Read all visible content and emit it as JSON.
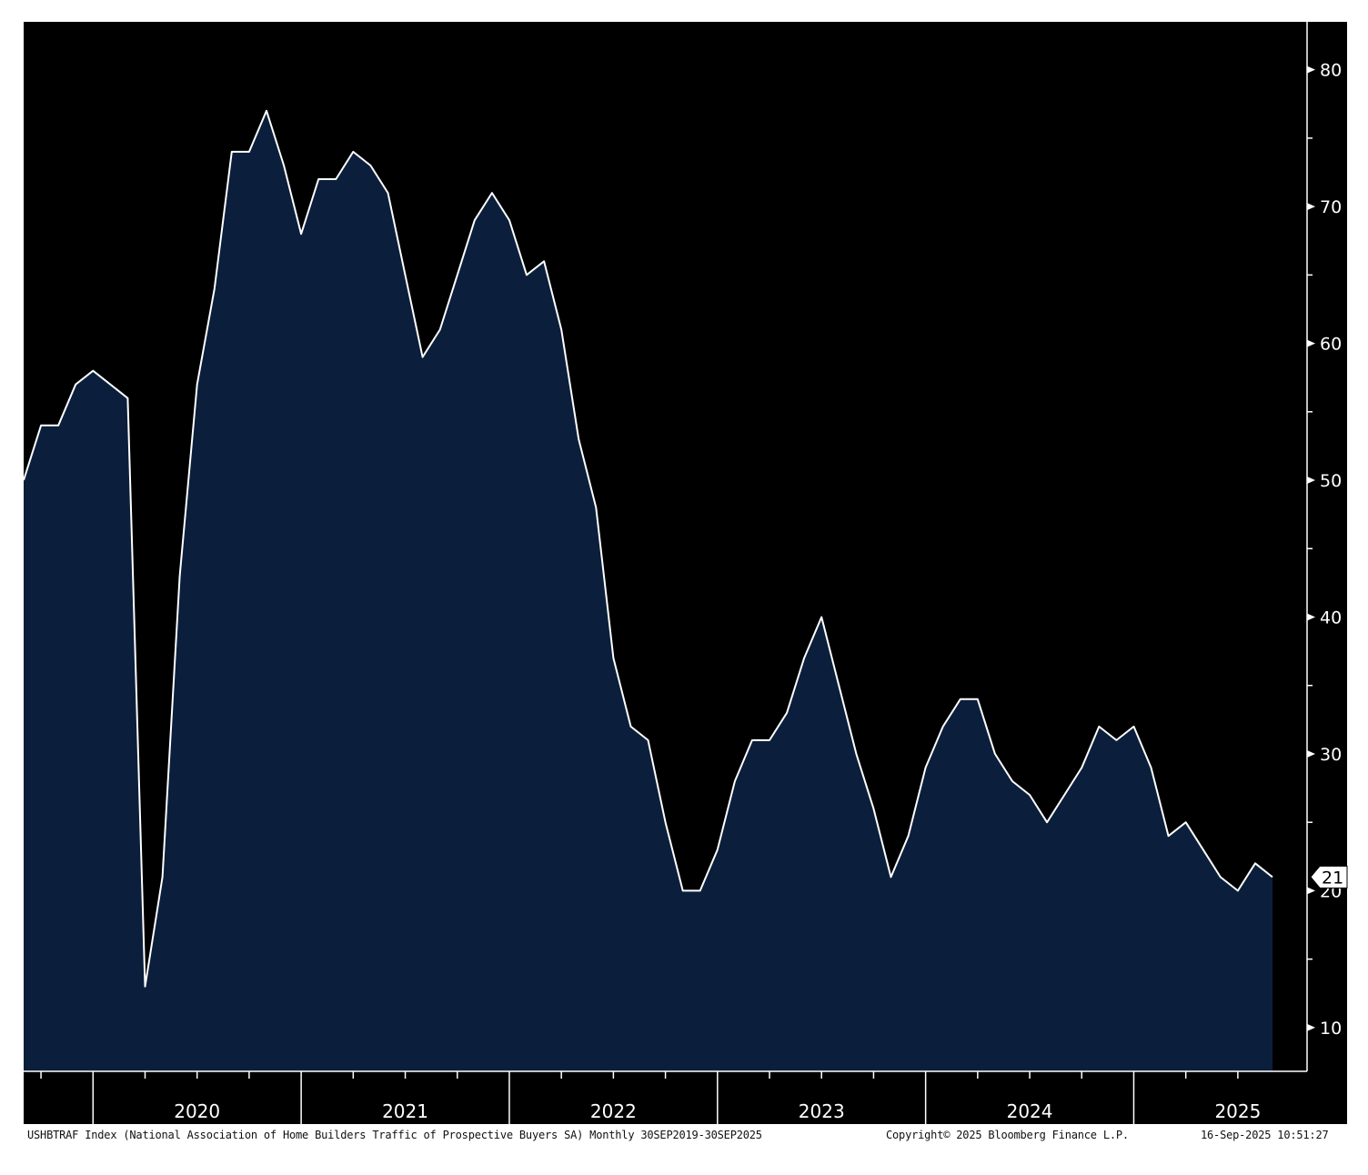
{
  "chart_data": {
    "type": "area",
    "ticker": "USHBTRAF Index",
    "description_text": "(National Association of Home Builders Traffic of Prospective Buyers SA)",
    "frequency": "Monthly",
    "range_text": "30SEP2019-30SEP2025",
    "x_start": "2019-09",
    "x_end": "2025-09",
    "year_labels": [
      "2020",
      "2021",
      "2022",
      "2023",
      "2024",
      "2025"
    ],
    "y_ticks": [
      10,
      20,
      30,
      40,
      50,
      60,
      70,
      80
    ],
    "ylim": [
      6.8,
      83.5
    ],
    "last_value_label": "21",
    "values": [
      50,
      54,
      54,
      57,
      58,
      57,
      56,
      13,
      21,
      43,
      57,
      64,
      74,
      74,
      77,
      73,
      68,
      72,
      72,
      74,
      73,
      71,
      65,
      59,
      61,
      65,
      69,
      71,
      69,
      65,
      66,
      61,
      53,
      48,
      37,
      32,
      31,
      25,
      20,
      20,
      23,
      28,
      31,
      31,
      33,
      37,
      40,
      35,
      30,
      26,
      21,
      24,
      29,
      32,
      34,
      34,
      30,
      28,
      27,
      25,
      27,
      29,
      32,
      31,
      32,
      29,
      24,
      25,
      23,
      21,
      20,
      22,
      21
    ],
    "colors": {
      "background": "#000000",
      "fill": "#0b1f3c",
      "line": "#ffffff",
      "axis": "#ffffff"
    }
  },
  "footer": {
    "left": "USHBTRAF Index (National Association of Home Builders Traffic of Prospective Buyers SA)  Monthly 30SEP2019-30SEP2025",
    "copyright": "Copyright© 2025 Bloomberg Finance L.P.",
    "timestamp": "16-Sep-2025 10:51:27"
  }
}
